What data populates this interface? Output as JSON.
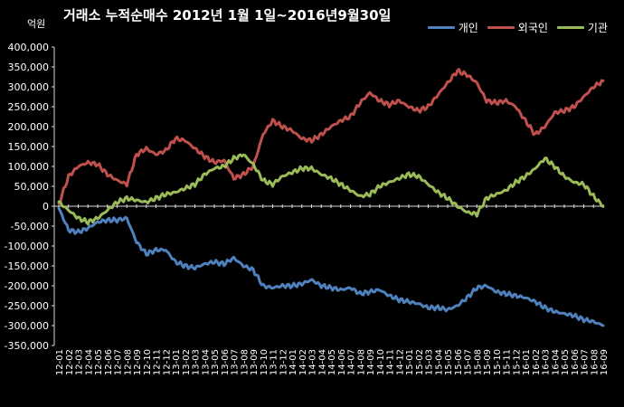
{
  "chart_data": {
    "type": "line",
    "title": "거래소 누적순매수 2012년 1월 1일~2016년9월30일",
    "unit_label": "억원",
    "ylim": [
      -350000,
      400000
    ],
    "yticks": [
      400000,
      350000,
      300000,
      250000,
      200000,
      150000,
      100000,
      50000,
      0,
      -50000,
      -100000,
      -150000,
      -200000,
      -250000,
      -300000,
      -350000
    ],
    "ytick_labels": [
      "400,000",
      "350,000",
      "300,000",
      "250,000",
      "200,000",
      "150,000",
      "100,000",
      "50,000",
      "0",
      "-50,000",
      "-100,000",
      "-150,000",
      "-200,000",
      "-250,000",
      "-300,000",
      "-350,000"
    ],
    "categories": [
      "12-01",
      "12-02",
      "12-03",
      "12-04",
      "12-05",
      "12-06",
      "12-07",
      "12-08",
      "12-09",
      "12-10",
      "12-11",
      "12-12",
      "13-01",
      "13-02",
      "13-03",
      "13-04",
      "13-05",
      "13-06",
      "13-07",
      "13-08",
      "13-09",
      "13-10",
      "13-11",
      "13-12",
      "14-01",
      "14-02",
      "14-03",
      "14-04",
      "14-05",
      "14-06",
      "14-07",
      "14-08",
      "14-09",
      "14-10",
      "14-11",
      "14-12",
      "15-01",
      "15-02",
      "15-03",
      "15-04",
      "15-05",
      "15-06",
      "15-07",
      "15-08",
      "15-09",
      "15-10",
      "15-11",
      "15-12",
      "16-01",
      "16-02",
      "16-03",
      "16-04",
      "16-05",
      "16-06",
      "16-07",
      "16-08",
      "16-09"
    ],
    "grid": false,
    "legend_position": "top-right",
    "series": [
      {
        "name": "개인",
        "color": "#4f81bd",
        "values": [
          -5000,
          -60000,
          -65000,
          -55000,
          -40000,
          -35000,
          -35000,
          -30000,
          -90000,
          -120000,
          -110000,
          -110000,
          -140000,
          -150000,
          -155000,
          -145000,
          -140000,
          -145000,
          -130000,
          -150000,
          -160000,
          -200000,
          -205000,
          -200000,
          -200000,
          -195000,
          -185000,
          -200000,
          -205000,
          -210000,
          -205000,
          -220000,
          -215000,
          -210000,
          -225000,
          -235000,
          -240000,
          -245000,
          -255000,
          -255000,
          -260000,
          -250000,
          -230000,
          -205000,
          -200000,
          -215000,
          -220000,
          -225000,
          -230000,
          -240000,
          -255000,
          -265000,
          -270000,
          -275000,
          -285000,
          -290000,
          -300000
        ]
      },
      {
        "name": "외국인",
        "color": "#c0504d",
        "values": [
          5000,
          75000,
          100000,
          110000,
          105000,
          80000,
          65000,
          55000,
          130000,
          145000,
          130000,
          140000,
          170000,
          165000,
          145000,
          125000,
          110000,
          115000,
          70000,
          80000,
          100000,
          180000,
          215000,
          200000,
          190000,
          170000,
          165000,
          180000,
          200000,
          215000,
          225000,
          260000,
          285000,
          265000,
          255000,
          265000,
          250000,
          240000,
          250000,
          280000,
          310000,
          340000,
          330000,
          310000,
          265000,
          260000,
          265000,
          250000,
          215000,
          180000,
          200000,
          235000,
          240000,
          250000,
          275000,
          300000,
          315000
        ]
      },
      {
        "name": "기관",
        "color": "#9bbb59",
        "values": [
          10000,
          -10000,
          -30000,
          -40000,
          -30000,
          -10000,
          10000,
          20000,
          15000,
          10000,
          20000,
          30000,
          35000,
          45000,
          55000,
          80000,
          95000,
          100000,
          120000,
          130000,
          105000,
          65000,
          55000,
          75000,
          85000,
          95000,
          95000,
          80000,
          70000,
          55000,
          40000,
          25000,
          30000,
          50000,
          60000,
          70000,
          80000,
          75000,
          55000,
          35000,
          20000,
          0,
          -15000,
          -20000,
          20000,
          30000,
          40000,
          60000,
          75000,
          95000,
          120000,
          100000,
          75000,
          60000,
          55000,
          25000,
          0
        ]
      }
    ]
  }
}
